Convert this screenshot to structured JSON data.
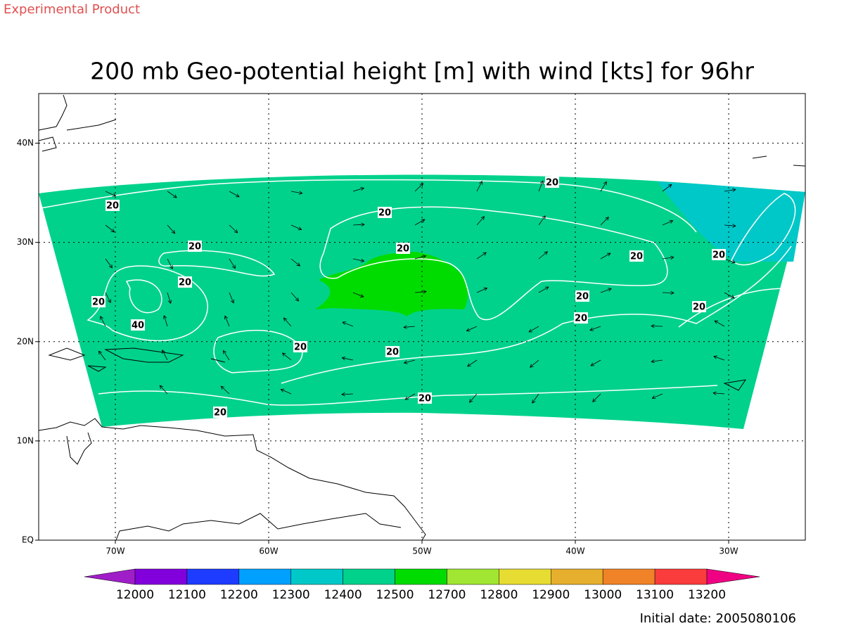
{
  "header": {
    "label": "Experimental Product"
  },
  "title": "200 mb Geo-potential height [m] with wind [kts] for 96hr",
  "map": {
    "lon_range": [
      -75,
      -25
    ],
    "lat_range": [
      0,
      45
    ],
    "grid": true,
    "lon_ticks": [
      {
        "value": -70,
        "label": "70W"
      },
      {
        "value": -60,
        "label": "60W"
      },
      {
        "value": -50,
        "label": "50W"
      },
      {
        "value": -40,
        "label": "40W"
      },
      {
        "value": -30,
        "label": "30W"
      }
    ],
    "lat_ticks": [
      {
        "value": 0,
        "label": "EQ"
      },
      {
        "value": 10,
        "label": "10N"
      },
      {
        "value": 20,
        "label": "20N"
      },
      {
        "value": 30,
        "label": "30N"
      },
      {
        "value": 40,
        "label": "40N"
      }
    ]
  },
  "contour_labels": [
    "20",
    "20",
    "20",
    "20",
    "20",
    "20",
    "20",
    "20",
    "20",
    "20",
    "20",
    "20",
    "40",
    "20",
    "20",
    "20",
    "20"
  ],
  "colorbar": {
    "levels": [
      12000,
      12100,
      12200,
      12300,
      12400,
      12500,
      12700,
      12800,
      12900,
      13000,
      13100,
      13200
    ],
    "colors": [
      "#a01ec8",
      "#8200dc",
      "#1e3cff",
      "#00a0ff",
      "#00c8c8",
      "#00d28c",
      "#00dc00",
      "#a0e632",
      "#e6dc32",
      "#e6af2d",
      "#f08228",
      "#fa3c3c",
      "#f00082"
    ]
  },
  "footer": "Initial date: 2005080106"
}
